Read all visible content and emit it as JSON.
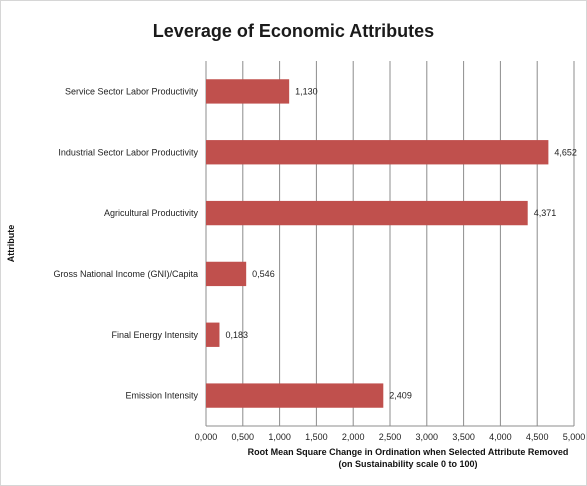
{
  "chart_data": {
    "type": "bar",
    "orientation": "horizontal",
    "title": "Leverage of Economic Attributes",
    "categories": [
      "Service Sector Labor Productivity",
      "Industrial Sector Labor Productivity",
      "Agricultural Productivity",
      "Gross National Income (GNI)/Capita",
      "Final Energy Intensity",
      "Emission Intensity"
    ],
    "values": [
      1.13,
      4.652,
      4.371,
      0.546,
      0.183,
      2.409
    ],
    "data_labels": [
      "1,130",
      "4,652",
      "4,371",
      "0,546",
      "0,183",
      "2,409"
    ],
    "x_ticks": [
      0,
      0.5,
      1,
      1.5,
      2,
      2.5,
      3,
      3.5,
      4,
      4.5,
      5
    ],
    "x_tick_labels": [
      "0,000",
      "0,500",
      "1,000",
      "1,500",
      "2,000",
      "2,500",
      "3,000",
      "3,500",
      "4,000",
      "4,500",
      "5,000"
    ],
    "xlim": [
      0,
      5
    ],
    "xlabel_line1": "Root Mean Square Change in Ordination when Selected Attribute Removed",
    "xlabel_line2": "(on Sustainability scale 0 to 100)",
    "ylabel": "Attribute",
    "grid": "vertical",
    "bar_color": "#c0504d"
  }
}
